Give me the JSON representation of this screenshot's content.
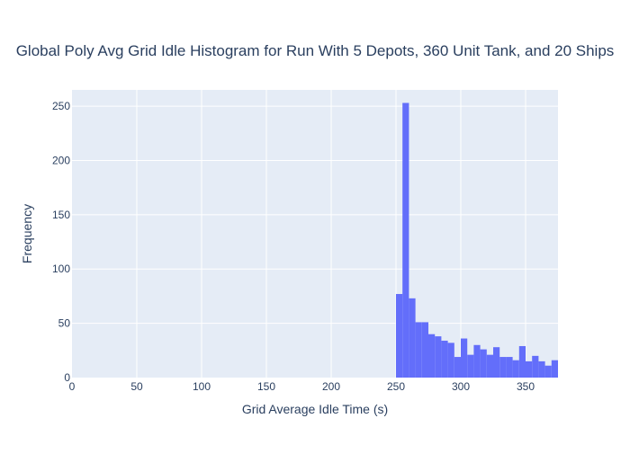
{
  "chart_data": {
    "type": "bar",
    "title": "Global Poly Avg Grid Idle Histogram for Run With 5 Depots, 360 Unit Tank, and 20 Ships",
    "xlabel": "Grid Average Idle Time (s)",
    "ylabel": "Frequency",
    "xlim": [
      0,
      375
    ],
    "ylim": [
      0,
      265
    ],
    "x_ticks": [
      0,
      50,
      100,
      150,
      200,
      250,
      300,
      350
    ],
    "y_ticks": [
      0,
      50,
      100,
      150,
      200,
      250
    ],
    "grid": true,
    "bar_color": "#636efa",
    "plot_bgcolor": "#e5ecf6",
    "bin_width": 5,
    "bins": [
      {
        "x0": 250,
        "x1": 255,
        "count": 77
      },
      {
        "x0": 255,
        "x1": 260,
        "count": 253
      },
      {
        "x0": 260,
        "x1": 265,
        "count": 73
      },
      {
        "x0": 265,
        "x1": 270,
        "count": 51
      },
      {
        "x0": 270,
        "x1": 275,
        "count": 51
      },
      {
        "x0": 275,
        "x1": 280,
        "count": 40
      },
      {
        "x0": 280,
        "x1": 285,
        "count": 38
      },
      {
        "x0": 285,
        "x1": 290,
        "count": 34
      },
      {
        "x0": 290,
        "x1": 295,
        "count": 32
      },
      {
        "x0": 295,
        "x1": 300,
        "count": 19
      },
      {
        "x0": 300,
        "x1": 305,
        "count": 36
      },
      {
        "x0": 305,
        "x1": 310,
        "count": 21
      },
      {
        "x0": 310,
        "x1": 315,
        "count": 30
      },
      {
        "x0": 315,
        "x1": 320,
        "count": 26
      },
      {
        "x0": 320,
        "x1": 325,
        "count": 21
      },
      {
        "x0": 325,
        "x1": 330,
        "count": 28
      },
      {
        "x0": 330,
        "x1": 335,
        "count": 19
      },
      {
        "x0": 335,
        "x1": 340,
        "count": 19
      },
      {
        "x0": 340,
        "x1": 345,
        "count": 16
      },
      {
        "x0": 345,
        "x1": 350,
        "count": 29
      },
      {
        "x0": 350,
        "x1": 355,
        "count": 15
      },
      {
        "x0": 355,
        "x1": 360,
        "count": 20
      },
      {
        "x0": 360,
        "x1": 365,
        "count": 15
      },
      {
        "x0": 365,
        "x1": 370,
        "count": 11
      },
      {
        "x0": 370,
        "x1": 375,
        "count": 16
      }
    ]
  }
}
